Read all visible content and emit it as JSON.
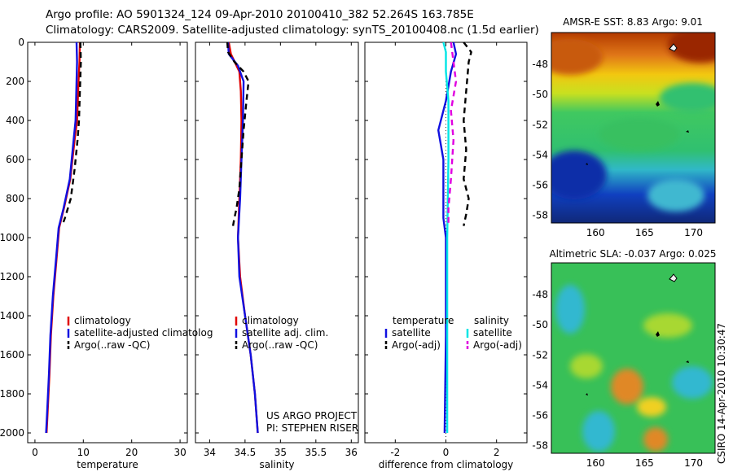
{
  "header": {
    "line1": "Argo profile: AO 5901324_124 09-Apr-2010 20100410_382 52.264S 163.785E",
    "line2": "Climatology: CARS2009. Satellite-adjusted climatology: synTS_20100408.nc (1.5d earlier)"
  },
  "credits": {
    "project": "US ARGO PROJECT",
    "pi": "PI: STEPHEN RISER",
    "stamp": "CSIRO 14-Apr-2010 10:30:47"
  },
  "colors": {
    "climatology": "#e00000",
    "satellite": "#1010e0",
    "argo": "#000000",
    "sat_salinity": "#00e5e5",
    "argo_salinity": "#e000e0"
  },
  "chart_data": [
    {
      "id": "temperature",
      "type": "line",
      "xlabel": "temperature",
      "ylabel": "",
      "xlim": [
        -1.5,
        31.5
      ],
      "ylim": [
        2050,
        0
      ],
      "xticks": [
        0,
        10,
        20,
        30
      ],
      "yticks": [
        0,
        200,
        400,
        600,
        800,
        1000,
        1200,
        1400,
        1600,
        1800,
        2000
      ],
      "series": [
        {
          "name": "climatology",
          "style": "solid",
          "points": [
            [
              9.3,
              0
            ],
            [
              9.2,
              100
            ],
            [
              9.0,
              200
            ],
            [
              8.7,
              400
            ],
            [
              8.2,
              500
            ],
            [
              7.3,
              700
            ],
            [
              6.0,
              850
            ],
            [
              5.0,
              950
            ],
            [
              4.5,
              1100
            ],
            [
              3.8,
              1300
            ],
            [
              3.3,
              1500
            ],
            [
              3.0,
              1700
            ],
            [
              2.6,
              1900
            ],
            [
              2.4,
              2000
            ]
          ]
        },
        {
          "name": "satellite-adjusted climatology",
          "style": "solid",
          "points": [
            [
              8.6,
              0
            ],
            [
              8.7,
              100
            ],
            [
              8.6,
              200
            ],
            [
              8.4,
              400
            ],
            [
              8.0,
              500
            ],
            [
              7.2,
              700
            ],
            [
              5.9,
              850
            ],
            [
              4.9,
              950
            ],
            [
              4.4,
              1100
            ],
            [
              3.7,
              1300
            ],
            [
              3.2,
              1500
            ],
            [
              2.9,
              1700
            ],
            [
              2.5,
              1900
            ],
            [
              2.3,
              2000
            ]
          ]
        },
        {
          "name": "Argo(..raw -QC)",
          "style": "dashed",
          "points": [
            [
              9.4,
              0
            ],
            [
              9.5,
              100
            ],
            [
              9.3,
              250
            ],
            [
              9.1,
              400
            ],
            [
              8.8,
              500
            ],
            [
              8.2,
              650
            ],
            [
              7.4,
              800
            ],
            [
              6.2,
              900
            ],
            [
              5.6,
              940
            ]
          ]
        }
      ],
      "legend": [
        "climatology",
        "satellite-adjusted climatolog",
        "Argo(..raw -QC)"
      ]
    },
    {
      "id": "salinity",
      "type": "line",
      "xlabel": "salinity",
      "ylabel": "",
      "xlim": [
        33.8,
        36.1
      ],
      "ylim": [
        2050,
        0
      ],
      "xticks": [
        34,
        34.5,
        35,
        35.5,
        36
      ],
      "series": [
        {
          "name": "climatology",
          "style": "solid",
          "points": [
            [
              34.27,
              0
            ],
            [
              34.3,
              60
            ],
            [
              34.42,
              150
            ],
            [
              34.44,
              250
            ],
            [
              34.45,
              400
            ],
            [
              34.44,
              600
            ],
            [
              34.42,
              800
            ],
            [
              34.4,
              1000
            ],
            [
              34.43,
              1200
            ],
            [
              34.5,
              1400
            ],
            [
              34.58,
              1600
            ],
            [
              34.64,
              1800
            ],
            [
              34.68,
              2000
            ]
          ]
        },
        {
          "name": "satellite adj. clim.",
          "style": "solid",
          "points": [
            [
              34.26,
              0
            ],
            [
              34.27,
              60
            ],
            [
              34.4,
              120
            ],
            [
              34.48,
              200
            ],
            [
              34.47,
              400
            ],
            [
              34.45,
              600
            ],
            [
              34.43,
              800
            ],
            [
              34.4,
              1000
            ],
            [
              34.42,
              1200
            ],
            [
              34.5,
              1400
            ],
            [
              34.58,
              1600
            ],
            [
              34.64,
              1800
            ],
            [
              34.68,
              2000
            ]
          ]
        },
        {
          "name": "Argo(..raw -QC)",
          "style": "dashed",
          "points": [
            [
              34.25,
              0
            ],
            [
              34.26,
              50
            ],
            [
              34.35,
              100
            ],
            [
              34.48,
              150
            ],
            [
              34.55,
              200
            ],
            [
              34.52,
              300
            ],
            [
              34.48,
              450
            ],
            [
              34.45,
              600
            ],
            [
              34.42,
              750
            ],
            [
              34.38,
              850
            ],
            [
              34.35,
              900
            ],
            [
              34.33,
              940
            ]
          ]
        }
      ],
      "legend": [
        "climatology",
        "satellite adj. clim.",
        "Argo(..raw -QC)"
      ]
    },
    {
      "id": "difference",
      "type": "line",
      "xlabel": "difference from climatology",
      "ylabel": "",
      "xlim": [
        -3.2,
        3.2
      ],
      "ylim": [
        2050,
        0
      ],
      "xticks": [
        -2,
        0,
        2
      ],
      "series": [
        {
          "name": "temperature satellite",
          "group": "temperature",
          "style": "solid",
          "points": [
            [
              0.3,
              0
            ],
            [
              0.4,
              60
            ],
            [
              0.2,
              150
            ],
            [
              0.0,
              300
            ],
            [
              -0.3,
              450
            ],
            [
              -0.1,
              600
            ],
            [
              -0.1,
              750
            ],
            [
              -0.1,
              900
            ],
            [
              0.0,
              1000
            ],
            [
              0.0,
              1500
            ],
            [
              -0.05,
              2000
            ]
          ]
        },
        {
          "name": "temperature Argo(-adj)",
          "group": "temperature",
          "style": "dashed",
          "points": [
            [
              0.7,
              0
            ],
            [
              1.0,
              50
            ],
            [
              0.9,
              100
            ],
            [
              0.8,
              250
            ],
            [
              0.7,
              400
            ],
            [
              0.8,
              550
            ],
            [
              0.7,
              700
            ],
            [
              0.9,
              800
            ],
            [
              0.8,
              880
            ],
            [
              0.7,
              940
            ]
          ]
        },
        {
          "name": "salinity satellite",
          "group": "salinity",
          "style": "solid",
          "points": [
            [
              -0.1,
              0
            ],
            [
              0.0,
              50
            ],
            [
              0.0,
              150
            ],
            [
              0.1,
              300
            ],
            [
              0.1,
              600
            ],
            [
              0.05,
              1000
            ],
            [
              0.05,
              1500
            ],
            [
              0.05,
              2000
            ]
          ]
        },
        {
          "name": "salinity Argo(-adj)",
          "group": "salinity",
          "style": "dashed",
          "points": [
            [
              0.2,
              0
            ],
            [
              0.3,
              100
            ],
            [
              0.4,
              200
            ],
            [
              0.2,
              350
            ],
            [
              0.3,
              500
            ],
            [
              0.2,
              700
            ],
            [
              0.1,
              850
            ],
            [
              0.1,
              940
            ]
          ]
        }
      ],
      "legend_groups": [
        {
          "title": "temperature",
          "items": [
            "satellite",
            "Argo(-adj)"
          ]
        },
        {
          "title": "salinity",
          "items": [
            "satellite",
            "Argo(-adj)"
          ]
        }
      ]
    },
    {
      "id": "sst_map",
      "type": "heatmap",
      "title": "AMSR-E SST: 8.83  Argo: 9.01",
      "xlim": [
        155.5,
        172.2
      ],
      "ylim": [
        -58.5,
        -45.9
      ],
      "xticks": [
        160,
        165,
        170
      ],
      "yticks": [
        -48,
        -50,
        -52,
        -54,
        -56,
        -58
      ],
      "float_position": [
        163.785,
        -52.264
      ]
    },
    {
      "id": "sla_map",
      "type": "heatmap",
      "title": "Altimetric SLA: -0.037  Argo: 0.025",
      "xlim": [
        155.5,
        172.2
      ],
      "ylim": [
        -58.5,
        -45.9
      ],
      "xticks": [
        160,
        165,
        170
      ],
      "yticks": [
        -48,
        -50,
        -52,
        -54,
        -56,
        -58
      ],
      "float_position": [
        163.785,
        -52.264
      ]
    }
  ]
}
